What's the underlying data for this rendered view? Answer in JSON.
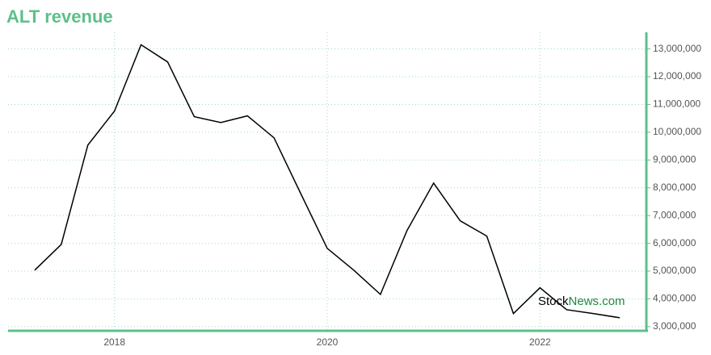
{
  "chart_data": {
    "type": "line",
    "title": "ALT revenue",
    "x": [
      2017.25,
      2017.5,
      2017.75,
      2018,
      2018.25,
      2018.5,
      2018.75,
      2019,
      2019.25,
      2019.5,
      2019.75,
      2020,
      2020.25,
      2020.5,
      2020.75,
      2021,
      2021.25,
      2021.5,
      2021.75,
      2022,
      2022.25,
      2022.5,
      2022.75
    ],
    "series": [
      {
        "name": "ALT revenue",
        "color": "#000000",
        "values": [
          5030000,
          5960000,
          9540000,
          10760000,
          13150000,
          12530000,
          10560000,
          10350000,
          10590000,
          9800000,
          7800000,
          5820000,
          5030000,
          4160000,
          6460000,
          8170000,
          6810000,
          6260000,
          3470000,
          4400000,
          3610000,
          3470000,
          3320000
        ]
      }
    ],
    "xlim": [
      2017,
      2023
    ],
    "xticks": [
      2018,
      2020,
      2022
    ],
    "ylim": [
      2850000,
      13600000
    ],
    "yticks": [
      {
        "value": 3000000,
        "label": "3,000,000"
      },
      {
        "value": 4000000,
        "label": "4,000,000"
      },
      {
        "value": 5000000,
        "label": "5,000,000"
      },
      {
        "value": 6000000,
        "label": "6,000,000"
      },
      {
        "value": 7000000,
        "label": "7,000,000"
      },
      {
        "value": 8000000,
        "label": "8,000,000"
      },
      {
        "value": 9000000,
        "label": "9,000,000"
      },
      {
        "value": 10000000,
        "label": "10,000,000"
      },
      {
        "value": 11000000,
        "label": "11,000,000"
      },
      {
        "value": 12000000,
        "label": "12,000,000"
      },
      {
        "value": 13000000,
        "label": "13,000,000"
      }
    ],
    "grid": true,
    "axis_color": "#5cc08a",
    "watermark": {
      "brand": "Stock",
      "suffix": "News.com"
    }
  }
}
